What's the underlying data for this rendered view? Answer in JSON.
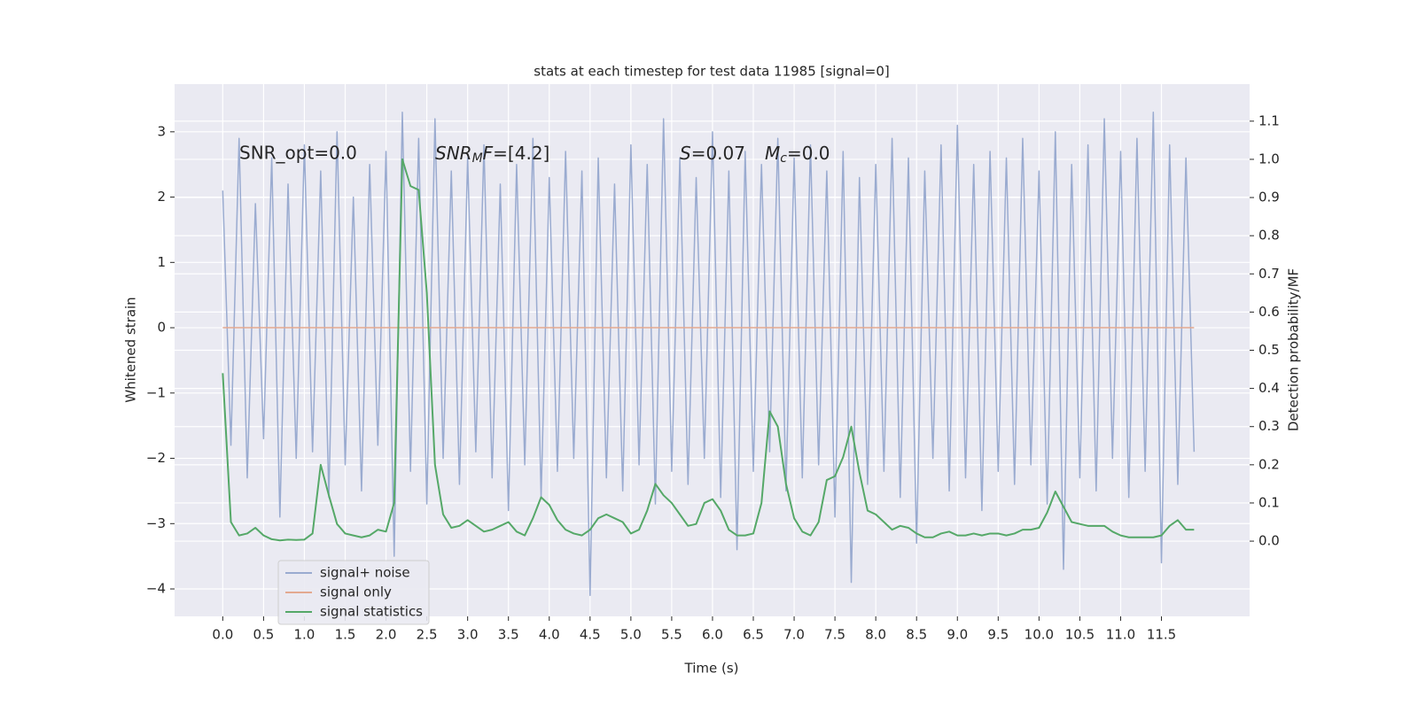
{
  "chart_data": {
    "type": "line",
    "title": "stats at each timestep for test data 11985 [signal=0]",
    "xlabel": "Time (s)",
    "ylabel": "Whitened strain",
    "y2label": "Detection probability/MF",
    "annotations": [
      "SNR_opt=0.0",
      [
        "SNR",
        "M",
        "F",
        "=[4.2]"
      ],
      [
        "S",
        "=0.07",
        "M",
        "c",
        "=0.0"
      ]
    ],
    "x": [
      0,
      0.1,
      0.2,
      0.3,
      0.4,
      0.5,
      0.6,
      0.7,
      0.8,
      0.9,
      1,
      1.1,
      1.2,
      1.3,
      1.4,
      1.5,
      1.6,
      1.7,
      1.8,
      1.9,
      2,
      2.1,
      2.2,
      2.3,
      2.4,
      2.5,
      2.6,
      2.7,
      2.8,
      2.9,
      3,
      3.1,
      3.2,
      3.3,
      3.4,
      3.5,
      3.6,
      3.7,
      3.8,
      3.9,
      4,
      4.1,
      4.2,
      4.3,
      4.4,
      4.5,
      4.6,
      4.7,
      4.8,
      4.9,
      5,
      5.1,
      5.2,
      5.3,
      5.4,
      5.5,
      5.6,
      5.7,
      5.8,
      5.9,
      6,
      6.1,
      6.2,
      6.3,
      6.4,
      6.5,
      6.6,
      6.7,
      6.8,
      6.9,
      7,
      7.1,
      7.2,
      7.3,
      7.4,
      7.5,
      7.6,
      7.7,
      7.8,
      7.9,
      8,
      8.1,
      8.2,
      8.3,
      8.4,
      8.5,
      8.6,
      8.7,
      8.8,
      8.9,
      9,
      9.1,
      9.2,
      9.3,
      9.4,
      9.5,
      9.6,
      9.7,
      9.8,
      9.9,
      10,
      10.1,
      10.2,
      10.3,
      10.4,
      10.5,
      10.6,
      10.7,
      10.8,
      10.9,
      11,
      11.1,
      11.2,
      11.3,
      11.4,
      11.5,
      11.6,
      11.7,
      11.8,
      11.9
    ],
    "series": [
      {
        "name": "signal+ noise",
        "color": "#9aabd0",
        "values": [
          2.1,
          -1.8,
          2.9,
          -2.3,
          1.9,
          -1.7,
          2.6,
          -2.9,
          2.2,
          -2.0,
          2.8,
          -1.9,
          2.4,
          -2.6,
          3.0,
          -2.1,
          2.0,
          -2.5,
          2.5,
          -1.8,
          2.7,
          -3.5,
          3.3,
          -2.2,
          2.9,
          -2.7,
          3.2,
          -2.0,
          2.4,
          -2.4,
          2.6,
          -1.9,
          2.8,
          -2.3,
          2.2,
          -2.8,
          2.5,
          -2.1,
          2.9,
          -2.6,
          2.3,
          -2.2,
          2.7,
          -2.0,
          2.4,
          -4.1,
          2.6,
          -2.3,
          2.2,
          -2.5,
          2.8,
          -2.1,
          2.5,
          -2.7,
          3.2,
          -2.2,
          2.6,
          -2.4,
          2.3,
          -2.0,
          3.0,
          -2.6,
          2.4,
          -3.4,
          2.7,
          -2.2,
          2.5,
          -1.9,
          2.9,
          -2.5,
          2.6,
          -2.3,
          2.8,
          -2.1,
          2.4,
          -2.9,
          2.7,
          -3.9,
          2.3,
          -2.4,
          2.5,
          -2.2,
          2.9,
          -2.6,
          2.6,
          -3.3,
          2.4,
          -2.0,
          2.8,
          -2.5,
          3.1,
          -2.3,
          2.5,
          -2.8,
          2.7,
          -2.2,
          2.6,
          -2.4,
          2.9,
          -2.1,
          2.4,
          -2.7,
          3.0,
          -3.7,
          2.5,
          -2.3,
          2.8,
          -2.5,
          3.2,
          -2.0,
          2.7,
          -2.6,
          2.9,
          -2.2,
          3.3,
          -3.6,
          2.8,
          -2.4,
          2.6,
          -1.9
        ]
      },
      {
        "name": "signal only",
        "color": "#e3a990",
        "values": [
          0,
          0,
          0,
          0,
          0,
          0,
          0,
          0,
          0,
          0,
          0,
          0,
          0,
          0,
          0,
          0,
          0,
          0,
          0,
          0,
          0,
          0,
          0,
          0,
          0,
          0,
          0,
          0,
          0,
          0,
          0,
          0,
          0,
          0,
          0,
          0,
          0,
          0,
          0,
          0,
          0,
          0,
          0,
          0,
          0,
          0,
          0,
          0,
          0,
          0,
          0,
          0,
          0,
          0,
          0,
          0,
          0,
          0,
          0,
          0,
          0,
          0,
          0,
          0,
          0,
          0,
          0,
          0,
          0,
          0,
          0,
          0,
          0,
          0,
          0,
          0,
          0,
          0,
          0,
          0,
          0,
          0,
          0,
          0,
          0,
          0,
          0,
          0,
          0,
          0,
          0,
          0,
          0,
          0,
          0,
          0,
          0,
          0,
          0,
          0,
          0,
          0,
          0,
          0,
          0,
          0,
          0,
          0,
          0,
          0,
          0,
          0,
          0,
          0,
          0,
          0,
          0,
          0,
          0,
          0
        ]
      },
      {
        "name": "signal statistics",
        "color": "#55a868",
        "axis": "y2",
        "values": [
          0.44,
          0.05,
          0.015,
          0.02,
          0.035,
          0.015,
          0.005,
          0.002,
          0.004,
          0.003,
          0.004,
          0.02,
          0.2,
          0.12,
          0.045,
          0.02,
          0.015,
          0.01,
          0.015,
          0.03,
          0.025,
          0.1,
          1.0,
          0.93,
          0.92,
          0.65,
          0.2,
          0.07,
          0.035,
          0.04,
          0.055,
          0.04,
          0.025,
          0.03,
          0.04,
          0.05,
          0.025,
          0.015,
          0.06,
          0.115,
          0.095,
          0.055,
          0.03,
          0.02,
          0.015,
          0.03,
          0.06,
          0.07,
          0.06,
          0.05,
          0.02,
          0.03,
          0.08,
          0.15,
          0.12,
          0.1,
          0.07,
          0.04,
          0.045,
          0.1,
          0.11,
          0.08,
          0.03,
          0.015,
          0.015,
          0.02,
          0.1,
          0.34,
          0.3,
          0.15,
          0.06,
          0.025,
          0.015,
          0.05,
          0.16,
          0.17,
          0.22,
          0.3,
          0.18,
          0.08,
          0.07,
          0.05,
          0.03,
          0.04,
          0.035,
          0.02,
          0.01,
          0.01,
          0.02,
          0.025,
          0.015,
          0.015,
          0.02,
          0.015,
          0.02,
          0.02,
          0.015,
          0.02,
          0.03,
          0.03,
          0.035,
          0.075,
          0.13,
          0.09,
          0.05,
          0.045,
          0.04,
          0.04,
          0.04,
          0.025,
          0.015,
          0.01,
          0.01,
          0.01,
          0.01,
          0.015,
          0.04,
          0.055,
          0.03,
          0.03
        ]
      }
    ],
    "xlim": [
      -0.59,
      12.58
    ],
    "xticks": [
      {
        "value": 0,
        "label": "0.0"
      },
      0.5,
      {
        "value": 1,
        "label": "1.0"
      },
      1.5,
      {
        "value": 2,
        "label": "2.0"
      },
      2.5,
      {
        "value": 3,
        "label": "3.0"
      },
      3.5,
      {
        "value": 4,
        "label": "4.0"
      },
      4.5,
      {
        "value": 5,
        "label": "5.0"
      },
      5.5,
      {
        "value": 6,
        "label": "6.0"
      },
      6.5,
      {
        "value": 7,
        "label": "7.0"
      },
      7.5,
      {
        "value": 8,
        "label": "8.0"
      },
      8.5,
      {
        "value": 9,
        "label": "9.0"
      },
      9.5,
      {
        "value": 10,
        "label": "10.0"
      },
      10.5,
      {
        "value": 11,
        "label": "11.0"
      },
      11.5
    ],
    "ylim": [
      -4.42,
      3.73
    ],
    "yticks": [
      {
        "value": -4,
        "label": "−4"
      },
      {
        "value": -3,
        "label": "−3"
      },
      {
        "value": -2,
        "label": "−2"
      },
      {
        "value": -1,
        "label": "−1"
      },
      0,
      1,
      2,
      3
    ],
    "y2lim": [
      -0.197,
      1.197
    ],
    "y2ticks": [
      {
        "value": 0,
        "label": "0.0"
      },
      0.1,
      0.2,
      0.3,
      0.4,
      0.5,
      0.6,
      0.7,
      0.8,
      0.9,
      {
        "value": 1,
        "label": "1.0"
      },
      1.1
    ],
    "grid": true,
    "legend": "lower left"
  }
}
